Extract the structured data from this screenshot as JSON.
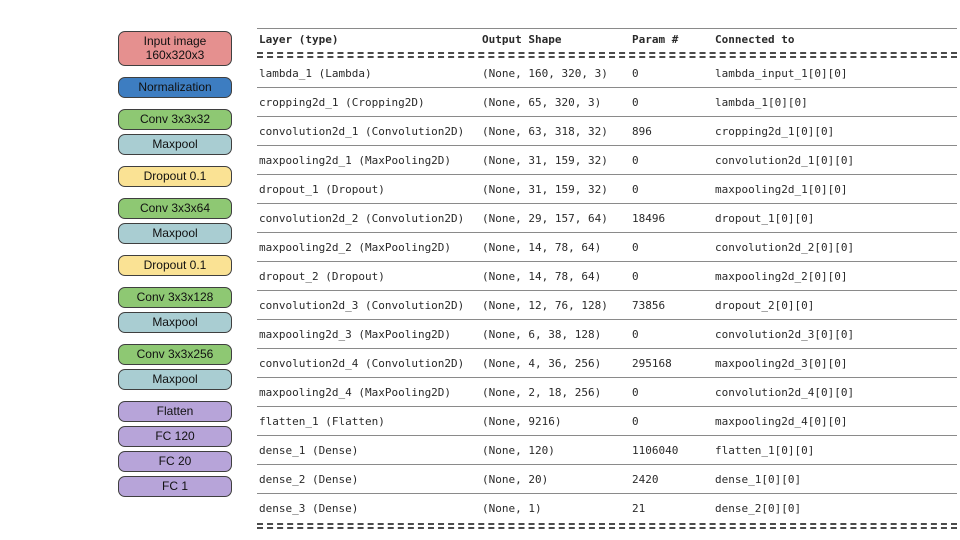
{
  "palette": {
    "input": "#e5908f",
    "normalization": "#3d7dc1",
    "conv": "#8ec873",
    "maxpool": "#a9cdd2",
    "dropout": "#fae294",
    "dense": "#b7a4d9",
    "block_border": "#3f3f3f",
    "table_text": "#2a2a2a",
    "rule": "#8a8a8a"
  },
  "diagram": {
    "groups": [
      {
        "blocks": [
          {
            "name": "input-image",
            "label": "Input image",
            "sublabel": "160x320x3",
            "color": "#e5908f"
          }
        ]
      },
      {
        "blocks": [
          {
            "name": "normalization",
            "label": "Normalization",
            "color": "#3d7dc1"
          }
        ]
      },
      {
        "blocks": [
          {
            "name": "conv-3x3x32",
            "label": "Conv 3x3x32",
            "color": "#8ec873"
          },
          {
            "name": "maxpool-1",
            "label": "Maxpool",
            "color": "#a9cdd2"
          }
        ]
      },
      {
        "blocks": [
          {
            "name": "dropout-1",
            "label": "Dropout 0.1",
            "color": "#fae294"
          }
        ]
      },
      {
        "blocks": [
          {
            "name": "conv-3x3x64",
            "label": "Conv 3x3x64",
            "color": "#8ec873"
          },
          {
            "name": "maxpool-2",
            "label": "Maxpool",
            "color": "#a9cdd2"
          }
        ]
      },
      {
        "blocks": [
          {
            "name": "dropout-2",
            "label": "Dropout 0.1",
            "color": "#fae294"
          }
        ]
      },
      {
        "blocks": [
          {
            "name": "conv-3x3x128",
            "label": "Conv 3x3x128",
            "color": "#8ec873"
          },
          {
            "name": "maxpool-3",
            "label": "Maxpool",
            "color": "#a9cdd2"
          }
        ]
      },
      {
        "blocks": [
          {
            "name": "conv-3x3x256",
            "label": "Conv 3x3x256",
            "color": "#8ec873"
          },
          {
            "name": "maxpool-4",
            "label": "Maxpool",
            "color": "#a9cdd2"
          }
        ]
      },
      {
        "blocks": [
          {
            "name": "flatten",
            "label": "Flatten",
            "color": "#b7a4d9"
          },
          {
            "name": "fc-120",
            "label": "FC 120",
            "color": "#b7a4d9"
          },
          {
            "name": "fc-20",
            "label": "FC 20",
            "color": "#b7a4d9"
          },
          {
            "name": "fc-1",
            "label": "FC 1",
            "color": "#b7a4d9"
          }
        ]
      }
    ]
  },
  "table": {
    "columns": [
      "Layer (type)",
      "Output Shape",
      "Param #",
      "Connected to"
    ],
    "rows": [
      [
        "lambda_1 (Lambda)",
        "(None, 160, 320, 3)",
        "0",
        "lambda_input_1[0][0]"
      ],
      [
        "cropping2d_1 (Cropping2D)",
        "(None, 65, 320, 3)",
        "0",
        "lambda_1[0][0]"
      ],
      [
        "convolution2d_1 (Convolution2D)",
        "(None, 63, 318, 32)",
        "896",
        "cropping2d_1[0][0]"
      ],
      [
        "maxpooling2d_1 (MaxPooling2D)",
        "(None, 31, 159, 32)",
        "0",
        "convolution2d_1[0][0]"
      ],
      [
        "dropout_1 (Dropout)",
        "(None, 31, 159, 32)",
        "0",
        "maxpooling2d_1[0][0]"
      ],
      [
        "convolution2d_2 (Convolution2D)",
        "(None, 29, 157, 64)",
        "18496",
        "dropout_1[0][0]"
      ],
      [
        "maxpooling2d_2 (MaxPooling2D)",
        "(None, 14, 78, 64)",
        "0",
        "convolution2d_2[0][0]"
      ],
      [
        "dropout_2 (Dropout)",
        "(None, 14, 78, 64)",
        "0",
        "maxpooling2d_2[0][0]"
      ],
      [
        "convolution2d_3 (Convolution2D)",
        "(None, 12, 76, 128)",
        "73856",
        "dropout_2[0][0]"
      ],
      [
        "maxpooling2d_3 (MaxPooling2D)",
        "(None, 6, 38, 128)",
        "0",
        "convolution2d_3[0][0]"
      ],
      [
        "convolution2d_4 (Convolution2D)",
        "(None, 4, 36, 256)",
        "295168",
        "maxpooling2d_3[0][0]"
      ],
      [
        "maxpooling2d_4 (MaxPooling2D)",
        "(None, 2, 18, 256)",
        "0",
        "convolution2d_4[0][0]"
      ],
      [
        "flatten_1 (Flatten)",
        "(None, 9216)",
        "0",
        "maxpooling2d_4[0][0]"
      ],
      [
        "dense_1 (Dense)",
        "(None, 120)",
        "1106040",
        "flatten_1[0][0]"
      ],
      [
        "dense_2 (Dense)",
        "(None, 20)",
        "2420",
        "dense_1[0][0]"
      ],
      [
        "dense_3 (Dense)",
        "(None, 1)",
        "21",
        "dense_2[0][0]"
      ]
    ]
  }
}
